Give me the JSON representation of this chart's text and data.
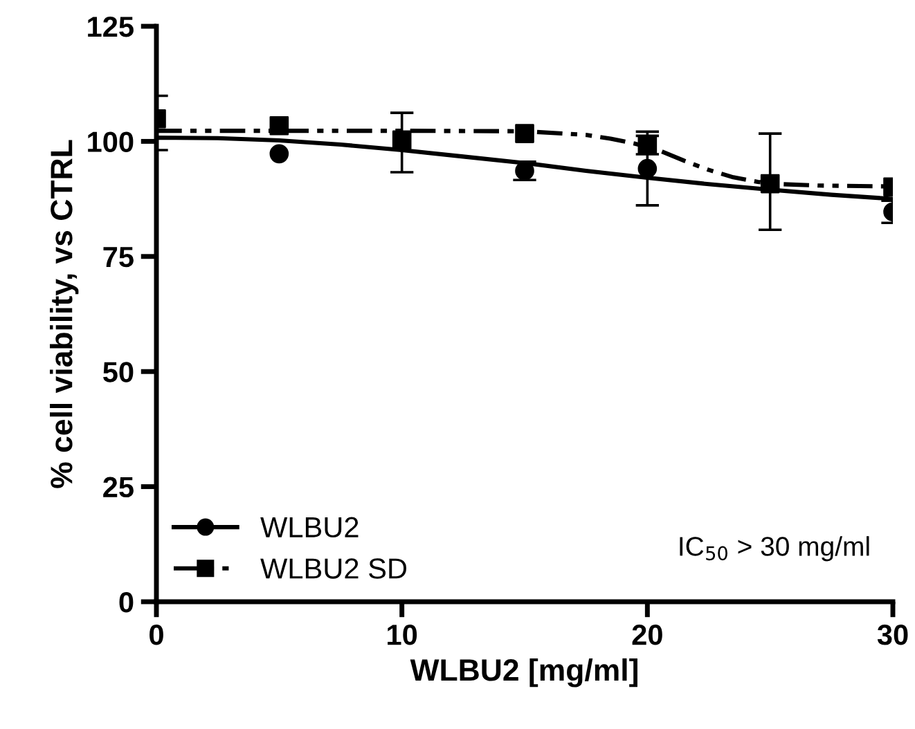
{
  "chart_data": {
    "type": "scatter",
    "xlabel": "WLBU2 [mg/ml]",
    "ylabel": "% cell viability, vs CTRL",
    "xlim": [
      0,
      30
    ],
    "ylim": [
      0,
      125
    ],
    "xticks": [
      0,
      10,
      20,
      30
    ],
    "yticks": [
      0,
      25,
      50,
      75,
      100,
      125
    ],
    "grid": false,
    "legend": "bottom left",
    "annotations": [
      "IC$_{50}$ > 30 mg/ml"
    ],
    "series": [
      {
        "name": "WLBU2",
        "color": "#000000",
        "marker": "circle",
        "line_style": "solid",
        "x": [
          5,
          15,
          20,
          30
        ],
        "values": [
          97.3,
          93.6,
          94.1,
          84.7
        ],
        "errors": [
          null,
          2,
          8,
          2.4
        ]
      },
      {
        "name": "WLBU2 SD",
        "color": "#000000",
        "marker": "square",
        "line_style": "dashdot",
        "x": [
          0,
          5,
          10,
          15,
          20,
          25,
          30
        ],
        "values": [
          104.9,
          103.4,
          100.3,
          101.7,
          99.2,
          90.8,
          90.1
        ],
        "errors": [
          [
            98.1,
            109.9
          ],
          null,
          [
            93.3,
            106.2
          ],
          null,
          2,
          [
            80.8,
            101.7
          ],
          null
        ]
      },
      {
        "type": "line",
        "color": "#000000",
        "marker": "none",
        "line_style": "solid",
        "x": [
          0,
          2.5,
          5,
          7.5,
          10,
          12.5,
          15,
          17.5,
          20,
          22.5,
          25,
          27.5,
          30
        ],
        "values": [
          100.8,
          100.7,
          100.2,
          99.3,
          98.1,
          96.7,
          95.3,
          93.6,
          92.1,
          90.7,
          89.5,
          88.4,
          87.5
        ]
      },
      {
        "type": "line",
        "color": "#000000",
        "marker": "none",
        "line_style": "dashdot",
        "x": [
          0,
          5,
          10,
          15,
          17.5,
          18.5,
          19.5,
          20.5,
          21.5,
          22.5,
          23.5,
          24.5,
          25.5,
          27,
          30
        ],
        "values": [
          102.3,
          102.3,
          102.3,
          102.2,
          101.4,
          100.6,
          99.5,
          98,
          95.8,
          93.8,
          92.2,
          91.2,
          90.7,
          90.4,
          90.2
        ]
      }
    ]
  }
}
